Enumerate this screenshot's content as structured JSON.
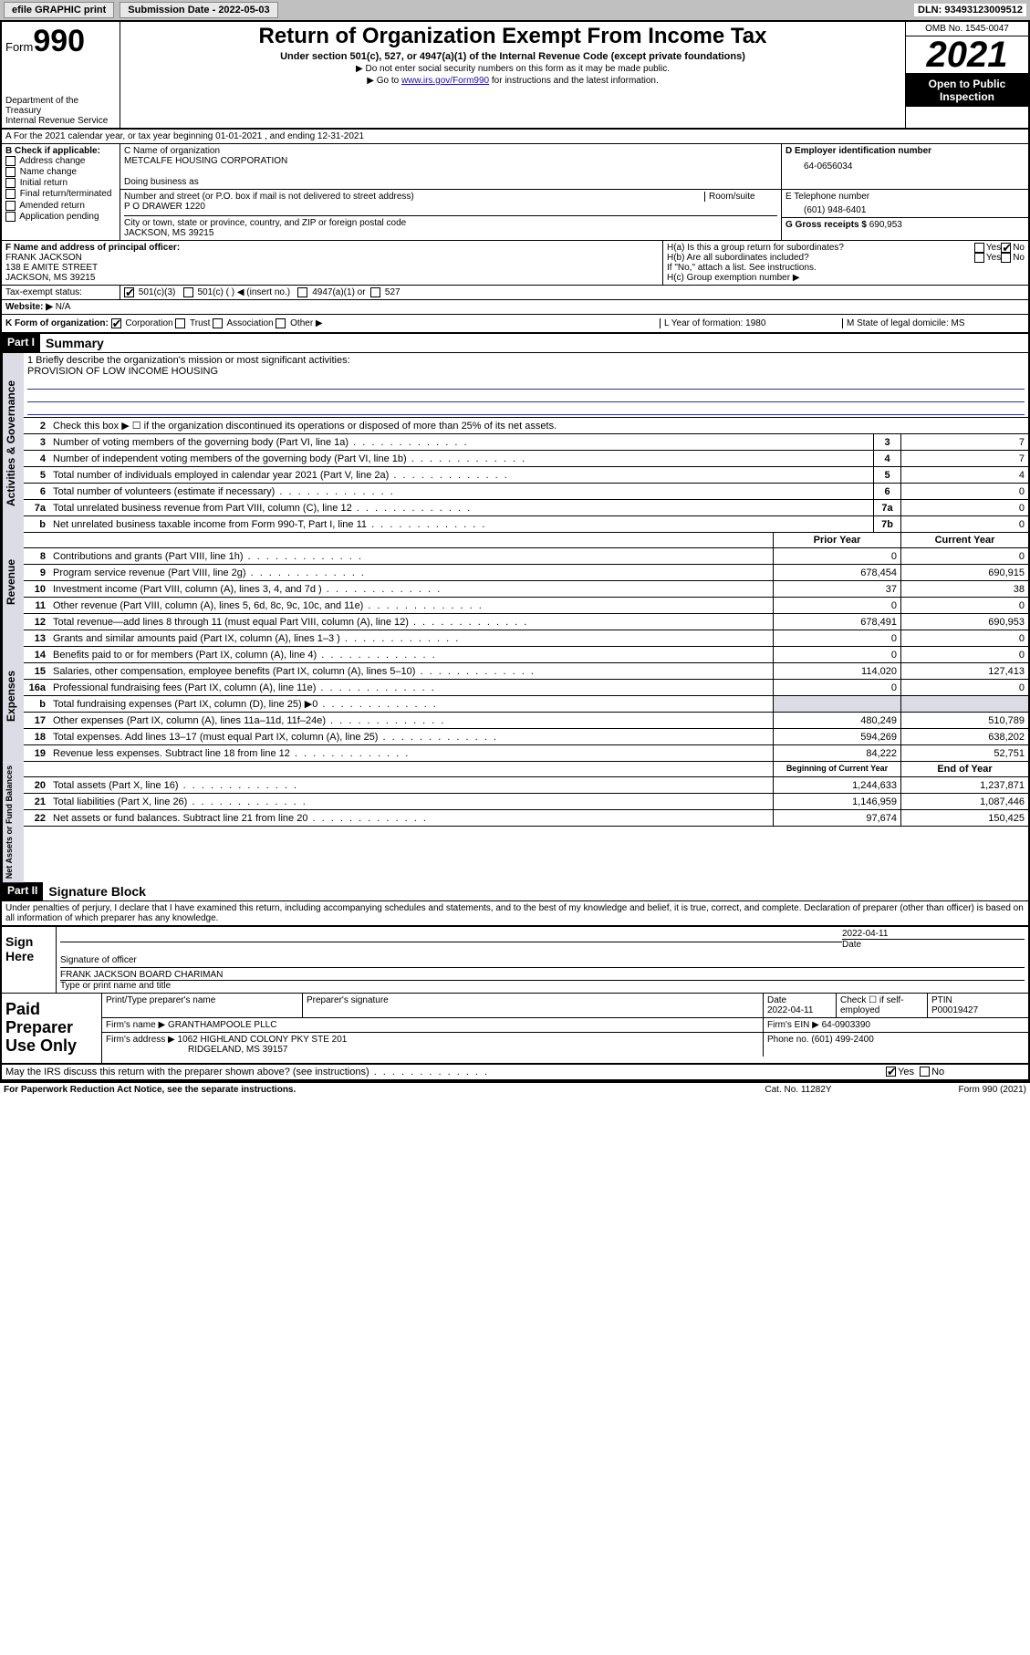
{
  "topbar": {
    "efile": "efile GRAPHIC print",
    "sub_label": "Submission Date - 2022-05-03",
    "dln": "DLN: 93493123009512"
  },
  "header": {
    "form_prefix": "Form",
    "form_num": "990",
    "dept": "Department of the Treasury\nInternal Revenue Service",
    "title": "Return of Organization Exempt From Income Tax",
    "subtitle": "Under section 501(c), 527, or 4947(a)(1) of the Internal Revenue Code (except private foundations)",
    "note1": "▶ Do not enter social security numbers on this form as it may be made public.",
    "note2_pre": "▶ Go to ",
    "note2_link": "www.irs.gov/Form990",
    "note2_post": " for instructions and the latest information.",
    "omb": "OMB No. 1545-0047",
    "year": "2021",
    "otp": "Open to Public Inspection"
  },
  "row_a": "A For the 2021 calendar year, or tax year beginning 01-01-2021  , and ending 12-31-2021",
  "col_b": {
    "label": "B Check if applicable:",
    "items": [
      "Address change",
      "Name change",
      "Initial return",
      "Final return/terminated",
      "Amended return",
      "Application pending"
    ]
  },
  "org": {
    "name_label": "C Name of organization",
    "name": "METCALFE HOUSING CORPORATION",
    "dba_label": "Doing business as",
    "addr_label": "Number and street (or P.O. box if mail is not delivered to street address)",
    "room_label": "Room/suite",
    "addr": "P O DRAWER 1220",
    "city_label": "City or town, state or province, country, and ZIP or foreign postal code",
    "city": "JACKSON, MS  39215"
  },
  "ein": {
    "label": "D Employer identification number",
    "value": "64-0656034"
  },
  "phone": {
    "label": "E Telephone number",
    "value": "(601) 948-6401"
  },
  "gross": {
    "label": "G Gross receipts $",
    "value": "690,953"
  },
  "officer": {
    "label": "F Name and address of principal officer:",
    "name": "FRANK JACKSON",
    "addr1": "138 E AMITE STREET",
    "addr2": "JACKSON, MS  39215"
  },
  "h": {
    "ha": "H(a)  Is this a group return for subordinates?",
    "hb": "H(b)  Are all subordinates included?",
    "hb_note": "If \"No,\" attach a list. See instructions.",
    "hc": "H(c)  Group exemption number ▶"
  },
  "tax_status": "Tax-exempt status:",
  "status_501c3": "501(c)(3)",
  "status_501c": "501(c) (   ) ◀ (insert no.)",
  "status_4947": "4947(a)(1) or",
  "status_527": "527",
  "website_label": "Website: ▶",
  "website": "N/A",
  "row_k": {
    "k": "K Form of organization:",
    "corp": "Corporation",
    "trust": "Trust",
    "assoc": "Association",
    "other": "Other ▶",
    "l_label": "L Year of formation:",
    "l_val": "1980",
    "m_label": "M State of legal domicile:",
    "m_val": "MS"
  },
  "part1": {
    "hdr": "Part I",
    "title": "Summary"
  },
  "mission": {
    "q": "1   Briefly describe the organization's mission or most significant activities:",
    "text": "PROVISION OF LOW INCOME HOUSING"
  },
  "line2": "Check this box ▶ ☐  if the organization discontinued its operations or disposed of more than 25% of its net assets.",
  "lines_gov": [
    {
      "n": "3",
      "d": "Number of voting members of the governing body (Part VI, line 1a)",
      "b": "3",
      "v": "7"
    },
    {
      "n": "4",
      "d": "Number of independent voting members of the governing body (Part VI, line 1b)",
      "b": "4",
      "v": "7"
    },
    {
      "n": "5",
      "d": "Total number of individuals employed in calendar year 2021 (Part V, line 2a)",
      "b": "5",
      "v": "4"
    },
    {
      "n": "6",
      "d": "Total number of volunteers (estimate if necessary)",
      "b": "6",
      "v": "0"
    },
    {
      "n": "7a",
      "d": "Total unrelated business revenue from Part VIII, column (C), line 12",
      "b": "7a",
      "v": "0"
    },
    {
      "n": "b",
      "d": "Net unrelated business taxable income from Form 990-T, Part I, line 11",
      "b": "7b",
      "v": "0"
    }
  ],
  "col_hdrs": {
    "prior": "Prior Year",
    "current": "Current Year"
  },
  "lines_rev": [
    {
      "n": "8",
      "d": "Contributions and grants (Part VIII, line 1h)",
      "p": "0",
      "c": "0"
    },
    {
      "n": "9",
      "d": "Program service revenue (Part VIII, line 2g)",
      "p": "678,454",
      "c": "690,915"
    },
    {
      "n": "10",
      "d": "Investment income (Part VIII, column (A), lines 3, 4, and 7d )",
      "p": "37",
      "c": "38"
    },
    {
      "n": "11",
      "d": "Other revenue (Part VIII, column (A), lines 5, 6d, 8c, 9c, 10c, and 11e)",
      "p": "0",
      "c": "0"
    },
    {
      "n": "12",
      "d": "Total revenue—add lines 8 through 11 (must equal Part VIII, column (A), line 12)",
      "p": "678,491",
      "c": "690,953"
    }
  ],
  "lines_exp": [
    {
      "n": "13",
      "d": "Grants and similar amounts paid (Part IX, column (A), lines 1–3 )",
      "p": "0",
      "c": "0"
    },
    {
      "n": "14",
      "d": "Benefits paid to or for members (Part IX, column (A), line 4)",
      "p": "0",
      "c": "0"
    },
    {
      "n": "15",
      "d": "Salaries, other compensation, employee benefits (Part IX, column (A), lines 5–10)",
      "p": "114,020",
      "c": "127,413"
    },
    {
      "n": "16a",
      "d": "Professional fundraising fees (Part IX, column (A), line 11e)",
      "p": "0",
      "c": "0"
    },
    {
      "n": "b",
      "d": "Total fundraising expenses (Part IX, column (D), line 25) ▶0",
      "p": "",
      "c": "",
      "shade": true
    },
    {
      "n": "17",
      "d": "Other expenses (Part IX, column (A), lines 11a–11d, 11f–24e)",
      "p": "480,249",
      "c": "510,789"
    },
    {
      "n": "18",
      "d": "Total expenses. Add lines 13–17 (must equal Part IX, column (A), line 25)",
      "p": "594,269",
      "c": "638,202"
    },
    {
      "n": "19",
      "d": "Revenue less expenses. Subtract line 18 from line 12",
      "p": "84,222",
      "c": "52,751"
    }
  ],
  "col_hdrs2": {
    "begin": "Beginning of Current Year",
    "end": "End of Year"
  },
  "lines_net": [
    {
      "n": "20",
      "d": "Total assets (Part X, line 16)",
      "p": "1,244,633",
      "c": "1,237,871"
    },
    {
      "n": "21",
      "d": "Total liabilities (Part X, line 26)",
      "p": "1,146,959",
      "c": "1,087,446"
    },
    {
      "n": "22",
      "d": "Net assets or fund balances. Subtract line 21 from line 20",
      "p": "97,674",
      "c": "150,425"
    }
  ],
  "vtabs": {
    "gov": "Activities & Governance",
    "rev": "Revenue",
    "exp": "Expenses",
    "net": "Net Assets or Fund Balances"
  },
  "part2": {
    "hdr": "Part II",
    "title": "Signature Block"
  },
  "sig_decl": "Under penalties of perjury, I declare that I have examined this return, including accompanying schedules and statements, and to the best of my knowledge and belief, it is true, correct, and complete. Declaration of preparer (other than officer) is based on all information of which preparer has any knowledge.",
  "sign": {
    "here": "Sign Here",
    "sig_label": "Signature of officer",
    "date": "2022-04-11",
    "date_label": "Date",
    "name": "FRANK JACKSON  BOARD CHARIMAN",
    "name_label": "Type or print name and title"
  },
  "paid": {
    "label": "Paid Preparer Use Only",
    "h1": "Print/Type preparer's name",
    "h2": "Preparer's signature",
    "h3": "Date",
    "h3v": "2022-04-11",
    "h4": "Check ☐ if self-employed",
    "h5": "PTIN",
    "h5v": "P00019427",
    "firm_label": "Firm's name    ▶",
    "firm": "GRANTHAMPOOLE PLLC",
    "ein_label": "Firm's EIN ▶",
    "ein": "64-0903390",
    "addr_label": "Firm's address ▶",
    "addr1": "1062 HIGHLAND COLONY PKY STE 201",
    "addr2": "RIDGELAND, MS  39157",
    "phone_label": "Phone no.",
    "phone": "(601) 499-2400"
  },
  "discuss": "May the IRS discuss this return with the preparer shown above? (see instructions)",
  "yes": "Yes",
  "no": "No",
  "footer": {
    "pra": "For Paperwork Reduction Act Notice, see the separate instructions.",
    "cat": "Cat. No. 11282Y",
    "form": "Form 990 (2021)"
  }
}
